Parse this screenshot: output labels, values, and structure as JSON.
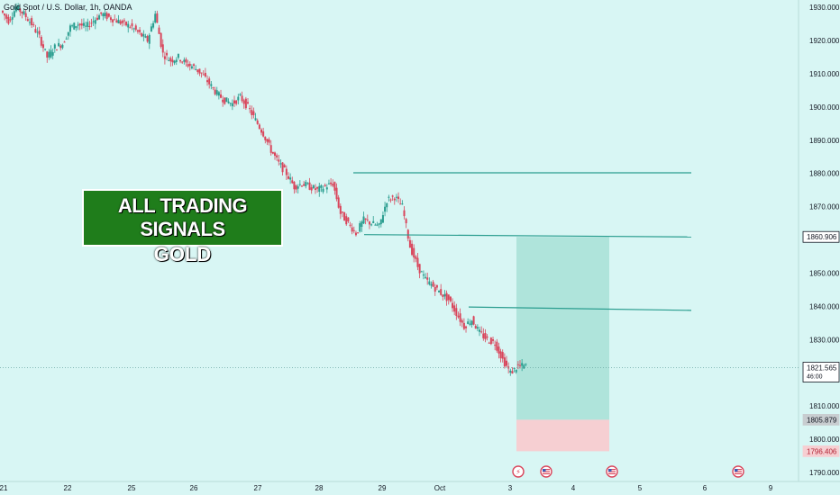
{
  "title": "Gold Spot / U.S. Dollar, 1h, OANDA",
  "banner": {
    "line1": "ALL TRADING SIGNALS",
    "line2": "GOLD"
  },
  "colors": {
    "background": "#d8f6f4",
    "up": "#2a9d8f",
    "down": "#d9455b",
    "line": "#2a9d8f",
    "profit_zone": "#a8e0d6",
    "loss_zone": "#f6cfd2",
    "banner": "#1f7d1b"
  },
  "chart_data": {
    "type": "candlestick",
    "x_ticks": [
      "21",
      "22",
      "25",
      "26",
      "27",
      "28",
      "29",
      "Oct",
      "3",
      "4",
      "5",
      "6",
      "9"
    ],
    "y_ticks": [
      1930.0,
      1920.0,
      1910.0,
      1900.0,
      1890.0,
      1880.0,
      1870.0,
      1860.0,
      1850.0,
      1840.0,
      1830.0,
      1820.0,
      1810.0,
      1800.0,
      1790.0
    ],
    "ylim": [
      1787.3,
      1932.2
    ],
    "price_path": [
      [
        0,
        1929
      ],
      [
        1,
        1926
      ],
      [
        2,
        1930
      ],
      [
        3,
        1928
      ],
      [
        4,
        1925
      ],
      [
        5,
        1921
      ],
      [
        6,
        1915
      ],
      [
        7,
        1918
      ],
      [
        8,
        1919
      ],
      [
        9,
        1924
      ],
      [
        10,
        1925
      ],
      [
        11,
        1924
      ],
      [
        12,
        1926
      ],
      [
        13,
        1928
      ],
      [
        14,
        1927
      ],
      [
        15,
        1926
      ],
      [
        16,
        1925
      ],
      [
        17,
        1924
      ],
      [
        18,
        1922
      ],
      [
        19,
        1920
      ],
      [
        20,
        1928
      ],
      [
        21,
        1916
      ],
      [
        22,
        1914
      ],
      [
        23,
        1915
      ],
      [
        24,
        1913
      ],
      [
        25,
        1912
      ],
      [
        26,
        1910
      ],
      [
        27,
        1907
      ],
      [
        28,
        1904
      ],
      [
        29,
        1902
      ],
      [
        30,
        1901
      ],
      [
        31,
        1903
      ],
      [
        32,
        1900
      ],
      [
        33,
        1896
      ],
      [
        34,
        1892
      ],
      [
        35,
        1887
      ],
      [
        36,
        1883
      ],
      [
        37,
        1880
      ],
      [
        38,
        1876
      ],
      [
        39,
        1877
      ],
      [
        40,
        1876
      ],
      [
        41,
        1875
      ],
      [
        42,
        1876
      ],
      [
        43,
        1877
      ],
      [
        44,
        1868
      ],
      [
        45,
        1865
      ],
      [
        46,
        1862
      ],
      [
        47,
        1866
      ],
      [
        48,
        1865
      ],
      [
        49,
        1864
      ],
      [
        50,
        1872
      ],
      [
        51,
        1873
      ],
      [
        52,
        1870
      ],
      [
        53,
        1858
      ],
      [
        54,
        1852
      ],
      [
        55,
        1848
      ],
      [
        56,
        1846
      ],
      [
        57,
        1844
      ],
      [
        58,
        1842
      ],
      [
        59,
        1838
      ],
      [
        60,
        1834
      ],
      [
        61,
        1836
      ],
      [
        62,
        1832
      ],
      [
        63,
        1830
      ],
      [
        64,
        1829
      ],
      [
        65,
        1824
      ],
      [
        66,
        1820
      ],
      [
        67,
        1822
      ]
    ],
    "horizontal_lines": [
      {
        "y1": 1880.2,
        "y2": 1880.2,
        "x1": 28.5,
        "x2": 5.8
      },
      {
        "y1": 1861.6,
        "y2": 1860.9,
        "x1": 28.6,
        "x2": 5.8
      },
      {
        "y1": 1839.8,
        "y2": 1838.8,
        "x1": 30.3,
        "x2": 5.8
      }
    ],
    "price_labels": [
      {
        "value": "1860.906",
        "y": 1860.906,
        "style": "outline"
      },
      {
        "value": "1821.565",
        "sub": "46:00",
        "y": 1821.565,
        "style": "outline"
      },
      {
        "value": "1805.879",
        "y": 1805.879,
        "style": "grey"
      },
      {
        "value": "1796.406",
        "y": 1796.406,
        "style": "red"
      }
    ],
    "profit_zone": {
      "top": 1860.906,
      "bottom": 1805.879
    },
    "loss_zone": {
      "top": 1805.879,
      "bottom": 1796.406
    },
    "current_price": 1821.565,
    "event_icons": [
      "event-warning-icon",
      "us-flag-icon",
      "us-flag-icon",
      "us-flag-icon"
    ]
  }
}
